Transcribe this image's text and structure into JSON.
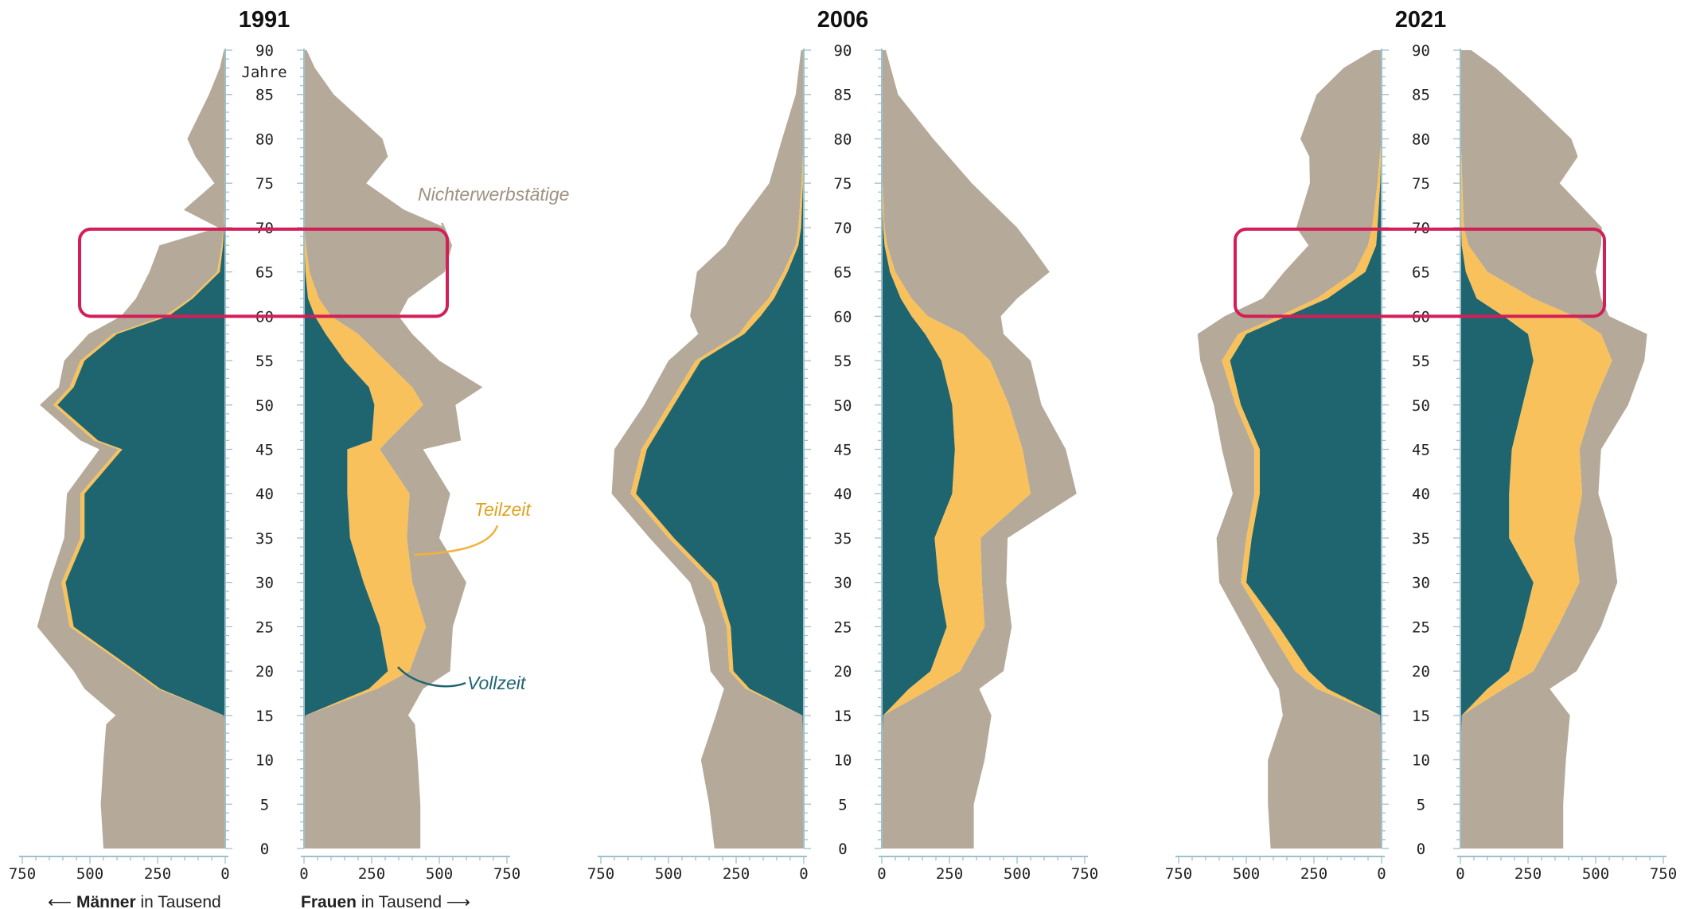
{
  "colors": {
    "vollzeit": "#1f6570",
    "teilzeit": "#f8c15b",
    "nichterwerbstaetige": "#b5a999",
    "highlight": "#d21f57",
    "axis": "#9ec0cc"
  },
  "axis": {
    "age_label": "Jahre",
    "maenner_bold": "Männer",
    "frauen_bold": "Frauen",
    "in_tausend": " in Tausend",
    "left_arrow": "⟵ ",
    "right_arrow": " ⟶"
  },
  "annotations": {
    "nichterwerbstaetige": "Nichterwerbstätige",
    "teilzeit": "Teilzeit",
    "vollzeit": "Vollzeit"
  },
  "highlights": [
    {
      "panel": "1991",
      "age_range": [
        60,
        70
      ]
    },
    {
      "panel": "2021",
      "age_range": [
        60,
        70
      ]
    }
  ],
  "chart_data": {
    "type": "area",
    "title": "",
    "y_label": "Jahre",
    "age_ticks": [
      0,
      5,
      10,
      15,
      20,
      25,
      30,
      35,
      40,
      45,
      50,
      55,
      60,
      65,
      70,
      75,
      80,
      85,
      90
    ],
    "x_ticks": [
      750,
      500,
      250,
      0
    ],
    "x_ticks_right": [
      0,
      250,
      500,
      750
    ],
    "xlim": [
      0,
      750
    ],
    "ylim": [
      0,
      90
    ],
    "series_names": [
      "Vollzeit",
      "Teilzeit",
      "Nichterwerbstätige"
    ],
    "panels": [
      {
        "year": "1991",
        "ages": [
          0,
          5,
          10,
          14,
          15,
          18,
          20,
          25,
          30,
          35,
          40,
          45,
          46,
          50,
          52,
          55,
          58,
          60,
          62,
          65,
          68,
          70,
          72,
          75,
          78,
          80,
          85,
          88,
          90
        ],
        "men": {
          "vollzeit": [
            0,
            0,
            0,
            0,
            5,
            240,
            330,
            560,
            590,
            520,
            520,
            380,
            470,
            620,
            560,
            520,
            400,
            210,
            120,
            20,
            8,
            4,
            2,
            0,
            0,
            0,
            0,
            0,
            0
          ],
          "teilzeit": [
            0,
            0,
            0,
            0,
            0,
            10,
            10,
            15,
            15,
            15,
            15,
            15,
            15,
            15,
            15,
            15,
            15,
            15,
            10,
            10,
            5,
            2,
            1,
            0,
            0,
            0,
            0,
            0,
            0
          ],
          "nichterwerb": [
            450,
            460,
            450,
            440,
            400,
            270,
            220,
            120,
            45,
            60,
            50,
            70,
            50,
            50,
            40,
            60,
            90,
            160,
            200,
            250,
            230,
            20,
            150,
            40,
            110,
            140,
            60,
            20,
            5
          ]
        },
        "women": {
          "vollzeit": [
            0,
            0,
            0,
            0,
            5,
            240,
            310,
            280,
            220,
            170,
            160,
            160,
            250,
            260,
            240,
            150,
            80,
            40,
            15,
            5,
            2,
            0,
            0,
            0,
            0,
            0,
            0,
            0,
            0
          ],
          "teilzeit": [
            0,
            0,
            0,
            0,
            0,
            30,
            80,
            170,
            180,
            210,
            230,
            120,
            60,
            180,
            160,
            150,
            120,
            60,
            40,
            15,
            5,
            1,
            0,
            0,
            0,
            0,
            0,
            0,
            0
          ],
          "nichterwerb": [
            430,
            430,
            420,
            410,
            380,
            170,
            150,
            100,
            200,
            120,
            150,
            160,
            270,
            120,
            260,
            200,
            200,
            250,
            330,
            500,
            540,
            520,
            370,
            230,
            310,
            290,
            110,
            40,
            10
          ]
        }
      },
      {
        "year": "2006",
        "ages": [
          0,
          5,
          10,
          15,
          18,
          20,
          25,
          30,
          35,
          40,
          45,
          50,
          55,
          58,
          60,
          62,
          65,
          68,
          70,
          75,
          80,
          85,
          90
        ],
        "men": {
          "vollzeit": [
            0,
            0,
            0,
            5,
            200,
            260,
            270,
            320,
            480,
            620,
            580,
            480,
            380,
            220,
            160,
            110,
            60,
            20,
            10,
            3,
            0,
            0,
            0
          ],
          "teilzeit": [
            0,
            0,
            0,
            0,
            15,
            15,
            15,
            20,
            20,
            20,
            20,
            20,
            20,
            20,
            30,
            20,
            15,
            10,
            10,
            5,
            0,
            0,
            0
          ],
          "nichterwerb": [
            330,
            350,
            380,
            320,
            80,
            70,
            80,
            80,
            70,
            70,
            100,
            90,
            100,
            150,
            230,
            280,
            320,
            260,
            230,
            120,
            80,
            30,
            10
          ]
        },
        "women": {
          "vollzeit": [
            0,
            0,
            0,
            5,
            100,
            180,
            240,
            210,
            195,
            260,
            270,
            260,
            220,
            160,
            110,
            70,
            30,
            10,
            5,
            1,
            0,
            0,
            0
          ],
          "teilzeit": [
            0,
            0,
            0,
            0,
            80,
            110,
            140,
            160,
            170,
            290,
            250,
            210,
            180,
            140,
            60,
            40,
            20,
            10,
            5,
            2,
            0,
            0,
            0
          ],
          "nichterwerb": [
            340,
            340,
            380,
            400,
            180,
            160,
            100,
            90,
            100,
            170,
            160,
            120,
            150,
            150,
            270,
            390,
            570,
            530,
            490,
            330,
            190,
            60,
            15
          ]
        }
      },
      {
        "year": "2021",
        "ages": [
          0,
          5,
          10,
          15,
          18,
          20,
          25,
          30,
          35,
          40,
          45,
          50,
          55,
          58,
          60,
          62,
          65,
          68,
          70,
          75,
          78,
          80,
          85,
          88,
          90
        ],
        "men": {
          "vollzeit": [
            0,
            0,
            0,
            5,
            200,
            270,
            380,
            500,
            480,
            450,
            450,
            520,
            560,
            500,
            350,
            200,
            60,
            20,
            15,
            5,
            2,
            0,
            0,
            0,
            0
          ],
          "teilzeit": [
            0,
            0,
            0,
            0,
            40,
            50,
            40,
            20,
            20,
            20,
            20,
            20,
            30,
            30,
            30,
            40,
            40,
            30,
            20,
            10,
            5,
            0,
            0,
            0,
            0
          ],
          "nichterwerb": [
            410,
            420,
            420,
            360,
            140,
            100,
            90,
            80,
            110,
            80,
            120,
            80,
            80,
            150,
            200,
            200,
            260,
            220,
            280,
            250,
            260,
            300,
            240,
            140,
            30
          ]
        },
        "women": {
          "vollzeit": [
            0,
            0,
            0,
            5,
            100,
            180,
            230,
            270,
            180,
            180,
            190,
            230,
            270,
            250,
            160,
            60,
            20,
            5,
            3,
            2,
            1,
            0,
            0,
            0,
            0
          ],
          "teilzeit": [
            0,
            0,
            0,
            0,
            60,
            90,
            130,
            170,
            240,
            270,
            250,
            260,
            290,
            270,
            260,
            210,
            80,
            25,
            10,
            5,
            3,
            0,
            0,
            0,
            0
          ],
          "nichterwerb": [
            380,
            380,
            390,
            400,
            170,
            160,
            160,
            140,
            140,
            60,
            80,
            130,
            120,
            170,
            130,
            250,
            400,
            490,
            510,
            360,
            430,
            410,
            240,
            130,
            40
          ]
        }
      }
    ]
  }
}
